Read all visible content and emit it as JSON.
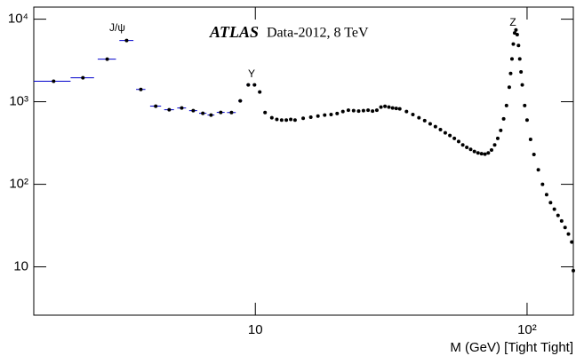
{
  "chart_data": {
    "type": "scatter",
    "title": "ATLAS",
    "subtitle": "Data-2012, 8 TeV",
    "x_label": "M (GeV) [Tight Tight]",
    "annotations": [
      "J/ψ",
      "Υ",
      "Z"
    ],
    "xscale": "log",
    "yscale": "log",
    "xlim": [
      1.53,
      148
    ],
    "ylim": [
      2.6,
      14000
    ],
    "xticks": [
      10,
      {
        "value": 100,
        "label": "10²"
      }
    ],
    "yticks": [
      10,
      {
        "value": 100,
        "label": "10²"
      },
      {
        "value": 1000,
        "label": "10³"
      },
      {
        "value": 10000,
        "label": "10⁴"
      }
    ],
    "series": [
      {
        "color": "#0000cc",
        "x": [
          1.81,
          2.32,
          2.85,
          3.36,
          3.79,
          4.3,
          4.82,
          5.36,
          5.91,
          6.41,
          6.87,
          7.46,
          8.17,
          8.8,
          9.42,
          9.93,
          10.38,
          10.86
        ],
        "values": [
          1770,
          1950,
          3280,
          5520,
          1410,
          884,
          800,
          840,
          780,
          724,
          690,
          743,
          740,
          1025,
          1600,
          1600,
          1310,
          740
        ],
        "x_errors": [
          0.28,
          0.23,
          0.22,
          0.2,
          0.15,
          0.2,
          0.2,
          0.2,
          0.2,
          0.2,
          0.2,
          0.25,
          0.3,
          0.15,
          0.15,
          0.15,
          0.15,
          0.15
        ]
      },
      {
        "color": "#0000cc",
        "x": [
          11.5,
          12,
          12.5,
          13,
          13.5,
          14,
          15,
          16,
          17,
          18,
          19,
          20,
          21,
          22,
          23,
          24,
          25,
          26,
          27,
          28,
          29,
          30,
          31,
          32,
          33,
          34,
          36,
          38,
          40,
          42,
          44,
          46,
          48,
          50,
          52,
          54,
          56,
          58,
          60,
          62,
          64,
          66,
          68,
          70,
          72,
          74,
          76,
          78,
          80,
          82,
          84,
          86,
          87,
          88,
          89,
          90,
          91,
          92,
          93,
          94,
          95,
          96,
          98,
          100,
          103,
          106,
          110,
          114,
          118,
          122,
          126,
          130,
          134,
          138,
          142,
          146,
          148
        ],
        "values": [
          640,
          610,
          600,
          600,
          610,
          600,
          630,
          650,
          670,
          690,
          700,
          720,
          760,
          790,
          780,
          770,
          780,
          790,
          770,
          790,
          860,
          880,
          860,
          840,
          830,
          820,
          760,
          700,
          640,
          590,
          540,
          500,
          460,
          420,
          390,
          360,
          330,
          300,
          280,
          265,
          250,
          240,
          235,
          232,
          240,
          260,
          300,
          360,
          450,
          620,
          900,
          1500,
          2200,
          3300,
          5000,
          6800,
          7400,
          6500,
          4800,
          3300,
          2300,
          1600,
          900,
          600,
          350,
          230,
          150,
          100,
          75,
          60,
          50,
          42,
          36,
          30,
          25,
          20,
          9
        ]
      }
    ]
  }
}
